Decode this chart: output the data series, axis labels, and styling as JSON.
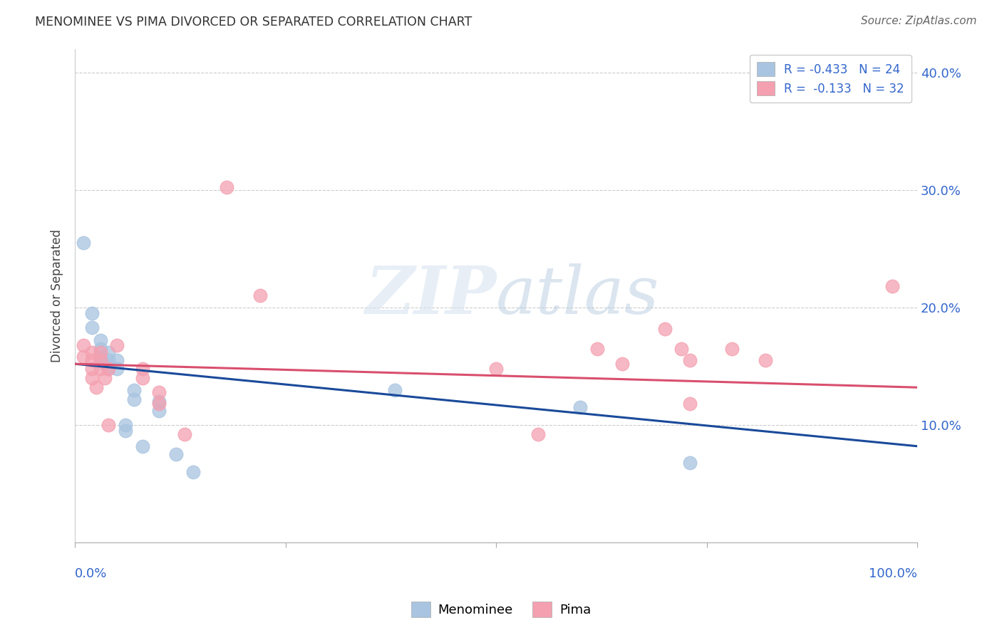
{
  "title": "MENOMINEE VS PIMA DIVORCED OR SEPARATED CORRELATION CHART",
  "source": "Source: ZipAtlas.com",
  "ylabel": "Divorced or Separated",
  "menominee_color": "#a8c4e0",
  "pima_color": "#f4a0b0",
  "line_blue": "#1a4a9a",
  "line_pink": "#d94f6e",
  "menominee_points": [
    [
      0.01,
      0.255
    ],
    [
      0.02,
      0.195
    ],
    [
      0.02,
      0.183
    ],
    [
      0.03,
      0.172
    ],
    [
      0.03,
      0.165
    ],
    [
      0.03,
      0.158
    ],
    [
      0.035,
      0.152
    ],
    [
      0.04,
      0.162
    ],
    [
      0.04,
      0.155
    ],
    [
      0.04,
      0.148
    ],
    [
      0.05,
      0.155
    ],
    [
      0.05,
      0.148
    ],
    [
      0.06,
      0.1
    ],
    [
      0.06,
      0.095
    ],
    [
      0.07,
      0.13
    ],
    [
      0.07,
      0.122
    ],
    [
      0.08,
      0.082
    ],
    [
      0.1,
      0.12
    ],
    [
      0.1,
      0.112
    ],
    [
      0.12,
      0.075
    ],
    [
      0.14,
      0.06
    ],
    [
      0.38,
      0.13
    ],
    [
      0.6,
      0.115
    ],
    [
      0.73,
      0.068
    ]
  ],
  "pima_points": [
    [
      0.01,
      0.168
    ],
    [
      0.01,
      0.158
    ],
    [
      0.02,
      0.162
    ],
    [
      0.02,
      0.155
    ],
    [
      0.02,
      0.148
    ],
    [
      0.02,
      0.14
    ],
    [
      0.025,
      0.132
    ],
    [
      0.03,
      0.162
    ],
    [
      0.03,
      0.155
    ],
    [
      0.03,
      0.148
    ],
    [
      0.035,
      0.14
    ],
    [
      0.04,
      0.148
    ],
    [
      0.04,
      0.1
    ],
    [
      0.05,
      0.168
    ],
    [
      0.08,
      0.148
    ],
    [
      0.08,
      0.14
    ],
    [
      0.1,
      0.128
    ],
    [
      0.1,
      0.118
    ],
    [
      0.13,
      0.092
    ],
    [
      0.18,
      0.302
    ],
    [
      0.22,
      0.21
    ],
    [
      0.5,
      0.148
    ],
    [
      0.55,
      0.092
    ],
    [
      0.62,
      0.165
    ],
    [
      0.65,
      0.152
    ],
    [
      0.7,
      0.182
    ],
    [
      0.72,
      0.165
    ],
    [
      0.73,
      0.155
    ],
    [
      0.73,
      0.118
    ],
    [
      0.78,
      0.165
    ],
    [
      0.82,
      0.155
    ],
    [
      0.97,
      0.218
    ]
  ],
  "xlim": [
    0.0,
    1.0
  ],
  "ylim": [
    0.0,
    0.42
  ],
  "legend_label1": "R = -0.433   N = 24",
  "legend_label2": "R =  -0.133   N = 32",
  "yticks": [
    0.1,
    0.2,
    0.3,
    0.4
  ],
  "yticklabels": [
    "10.0%",
    "20.0%",
    "30.0%",
    "40.0%"
  ]
}
